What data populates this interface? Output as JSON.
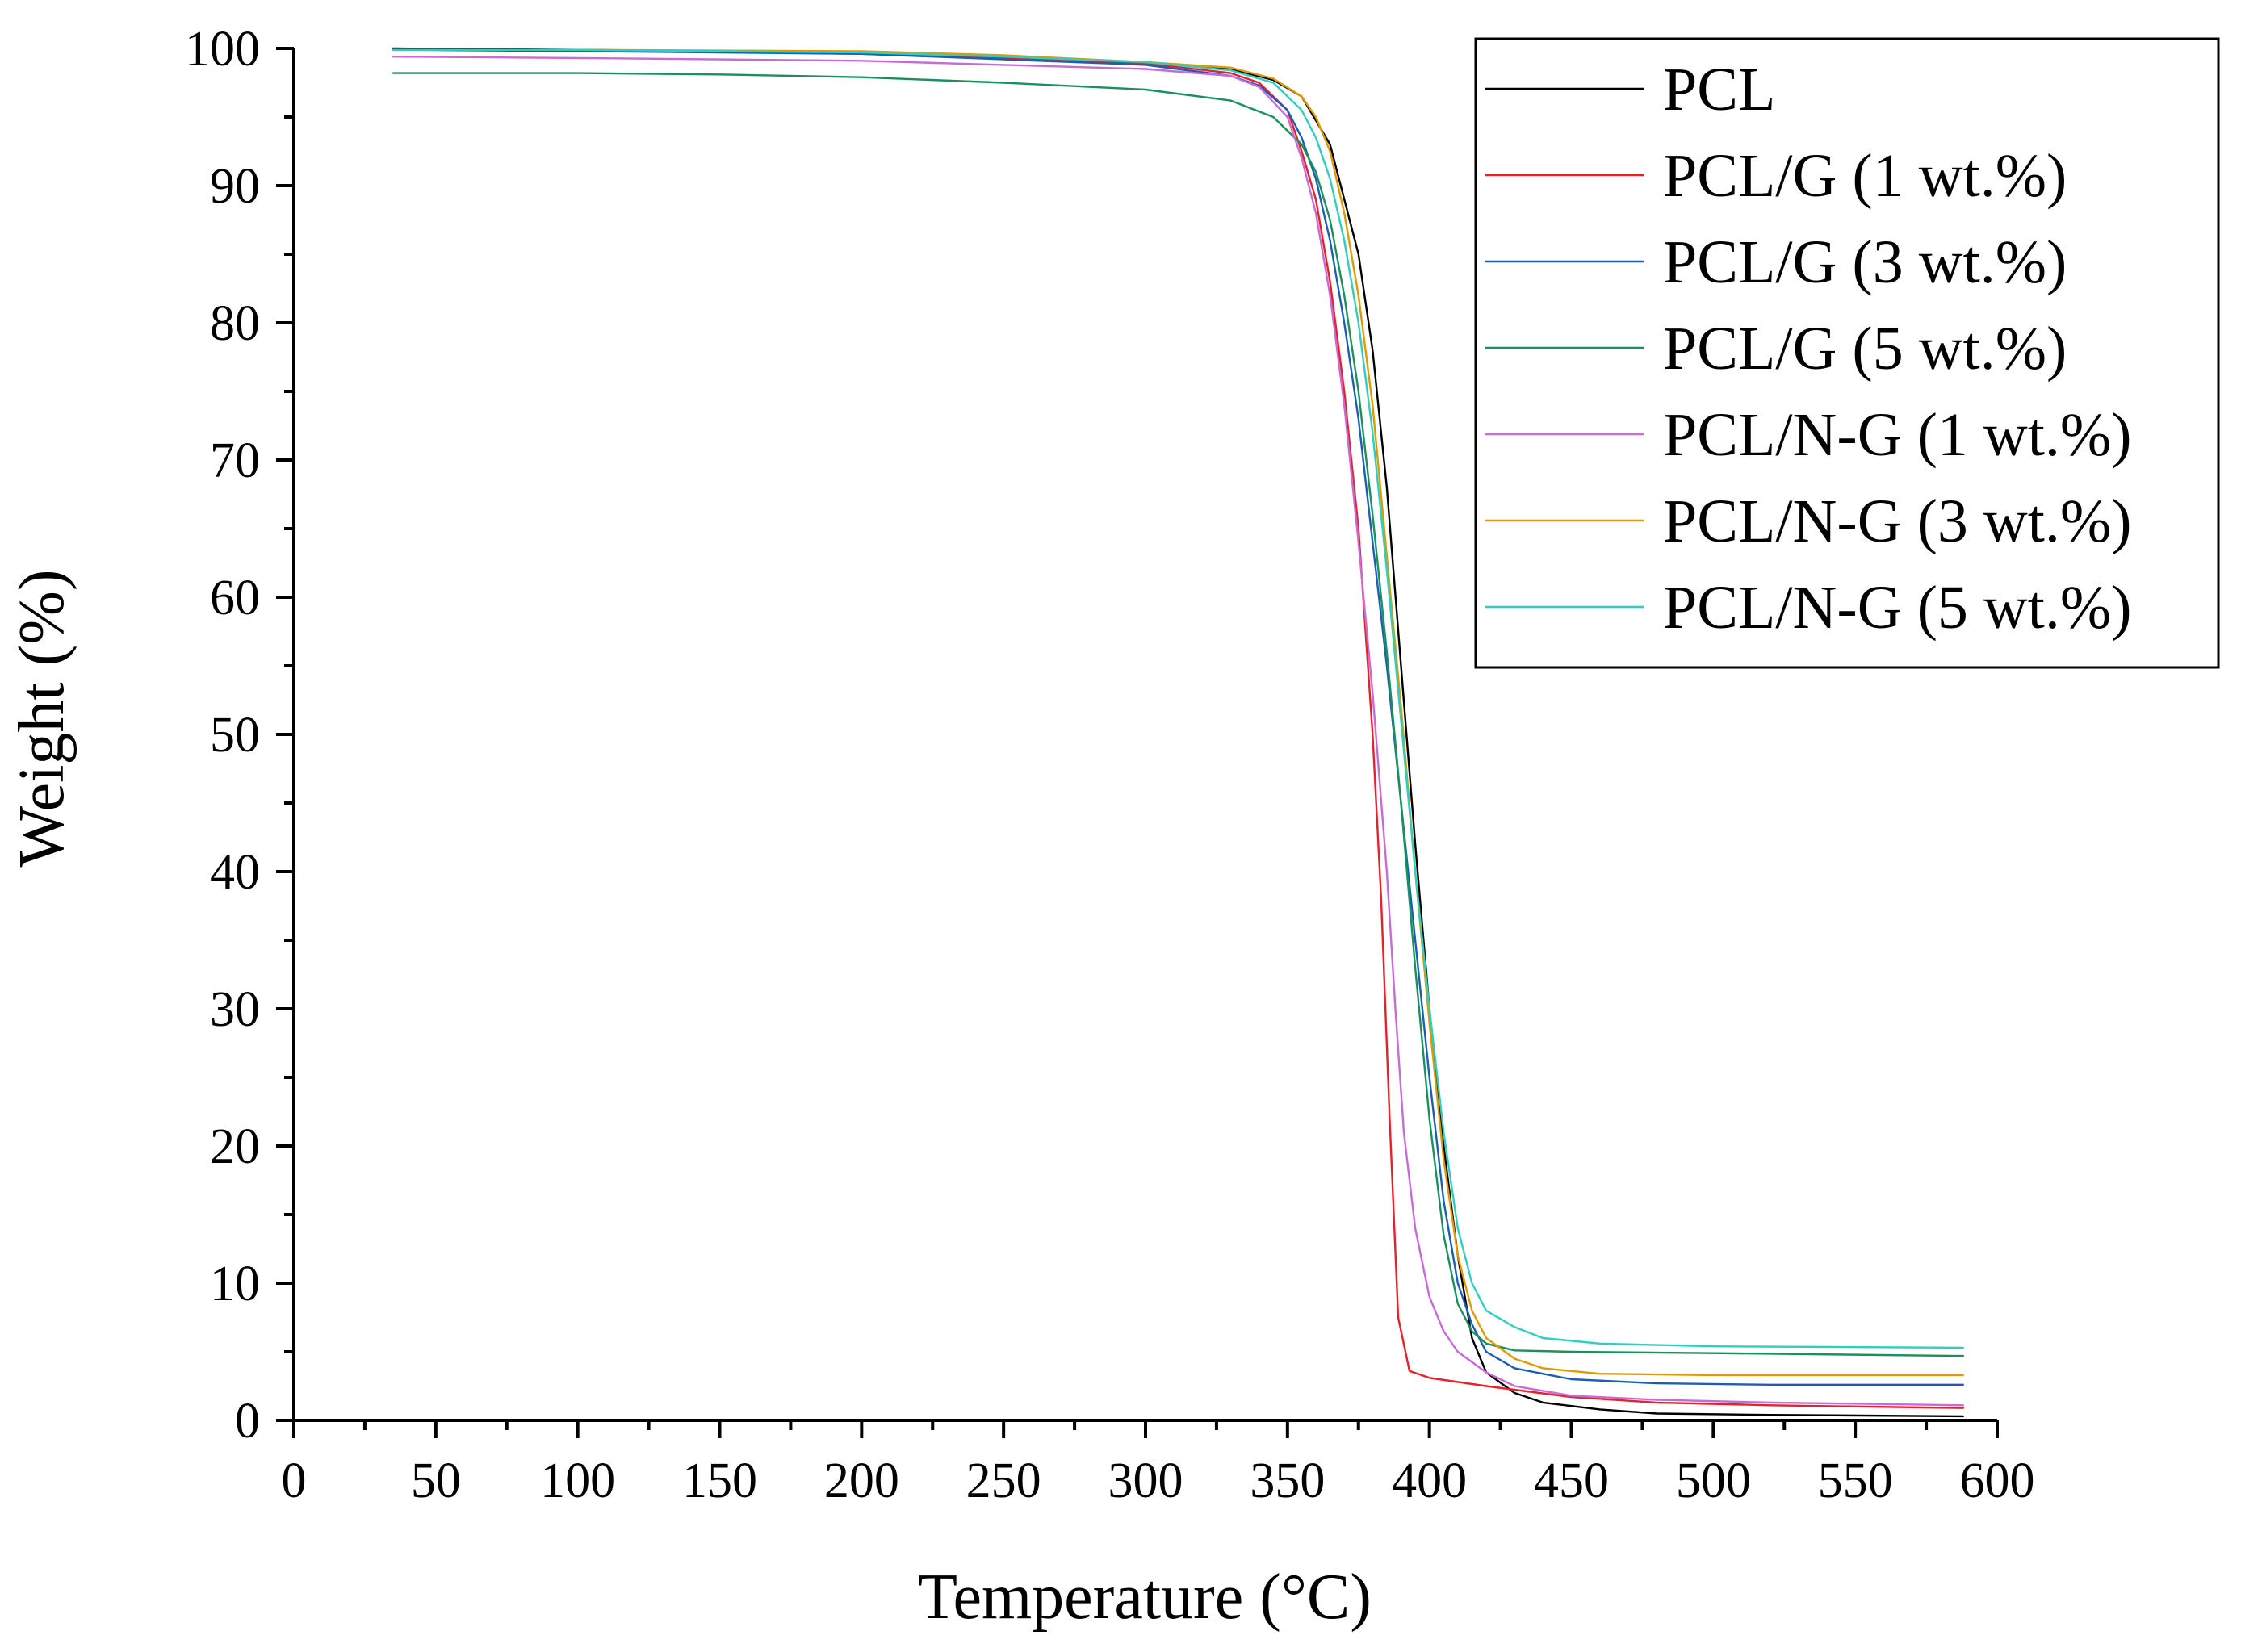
{
  "chart_data": {
    "type": "line",
    "title": "",
    "xlabel": "Temperature (°C)",
    "ylabel": "Weight (%)",
    "xlim": [
      0,
      600
    ],
    "ylim": [
      0,
      100
    ],
    "x_ticks": [
      0,
      50,
      100,
      150,
      200,
      250,
      300,
      350,
      400,
      450,
      500,
      550,
      600
    ],
    "y_ticks": [
      0,
      10,
      20,
      30,
      40,
      50,
      60,
      70,
      80,
      90,
      100
    ],
    "grid": false,
    "legend_position": "top-right",
    "series": [
      {
        "name": "PCL",
        "color": "#000000",
        "points": [
          [
            35,
            100
          ],
          [
            100,
            99.9
          ],
          [
            200,
            99.7
          ],
          [
            250,
            99.4
          ],
          [
            300,
            99
          ],
          [
            330,
            98.5
          ],
          [
            345,
            97.7
          ],
          [
            355,
            96.5
          ],
          [
            365,
            93
          ],
          [
            370,
            89
          ],
          [
            375,
            85
          ],
          [
            380,
            78
          ],
          [
            385,
            68
          ],
          [
            390,
            55
          ],
          [
            395,
            42
          ],
          [
            400,
            30
          ],
          [
            405,
            20
          ],
          [
            410,
            12
          ],
          [
            415,
            6
          ],
          [
            420,
            3.5
          ],
          [
            430,
            2
          ],
          [
            440,
            1.3
          ],
          [
            460,
            0.8
          ],
          [
            480,
            0.5
          ],
          [
            520,
            0.4
          ],
          [
            588,
            0.3
          ]
        ]
      },
      {
        "name": "PCL/G (1 wt.%)",
        "color": "#e8202a",
        "points": [
          [
            35,
            99.9
          ],
          [
            100,
            99.9
          ],
          [
            200,
            99.6
          ],
          [
            250,
            99.3
          ],
          [
            300,
            98.9
          ],
          [
            330,
            98.2
          ],
          [
            340,
            97.5
          ],
          [
            350,
            95.5
          ],
          [
            355,
            92.5
          ],
          [
            360,
            89
          ],
          [
            365,
            83
          ],
          [
            370,
            75
          ],
          [
            375,
            65
          ],
          [
            380,
            50
          ],
          [
            383,
            38
          ],
          [
            386,
            22
          ],
          [
            389,
            7.5
          ],
          [
            393,
            3.6
          ],
          [
            400,
            3.1
          ],
          [
            420,
            2.5
          ],
          [
            450,
            1.7
          ],
          [
            480,
            1.3
          ],
          [
            520,
            1.1
          ],
          [
            588,
            0.9
          ]
        ]
      },
      {
        "name": "PCL/G (3 wt.%)",
        "color": "#1a5fb4",
        "points": [
          [
            35,
            99.9
          ],
          [
            100,
            99.8
          ],
          [
            200,
            99.6
          ],
          [
            250,
            99.2
          ],
          [
            300,
            98.8
          ],
          [
            330,
            98
          ],
          [
            340,
            97.3
          ],
          [
            350,
            95.5
          ],
          [
            355,
            93.5
          ],
          [
            360,
            90.5
          ],
          [
            365,
            86
          ],
          [
            370,
            80
          ],
          [
            375,
            73
          ],
          [
            380,
            64
          ],
          [
            385,
            55
          ],
          [
            390,
            45
          ],
          [
            395,
            35
          ],
          [
            400,
            25
          ],
          [
            405,
            16
          ],
          [
            410,
            10
          ],
          [
            415,
            7
          ],
          [
            420,
            5
          ],
          [
            430,
            3.8
          ],
          [
            450,
            3
          ],
          [
            480,
            2.7
          ],
          [
            520,
            2.6
          ],
          [
            588,
            2.6
          ]
        ]
      },
      {
        "name": "PCL/G (5 wt.%)",
        "color": "#17925a",
        "points": [
          [
            35,
            98.2
          ],
          [
            100,
            98.2
          ],
          [
            150,
            98.1
          ],
          [
            200,
            97.9
          ],
          [
            250,
            97.5
          ],
          [
            300,
            97
          ],
          [
            330,
            96.2
          ],
          [
            345,
            95
          ],
          [
            355,
            93
          ],
          [
            360,
            91
          ],
          [
            365,
            87.5
          ],
          [
            370,
            82
          ],
          [
            375,
            75
          ],
          [
            380,
            66
          ],
          [
            385,
            56
          ],
          [
            390,
            45
          ],
          [
            395,
            33
          ],
          [
            400,
            22
          ],
          [
            405,
            13.5
          ],
          [
            410,
            8.5
          ],
          [
            415,
            6.5
          ],
          [
            420,
            5.6
          ],
          [
            430,
            5.1
          ],
          [
            450,
            5
          ],
          [
            500,
            4.9
          ],
          [
            588,
            4.7
          ]
        ]
      },
      {
        "name": "PCL/N-G (1 wt.%)",
        "color": "#c76bd6",
        "points": [
          [
            35,
            99.4
          ],
          [
            100,
            99.3
          ],
          [
            200,
            99.1
          ],
          [
            250,
            98.8
          ],
          [
            300,
            98.5
          ],
          [
            330,
            98
          ],
          [
            340,
            97.2
          ],
          [
            350,
            95
          ],
          [
            355,
            92
          ],
          [
            360,
            88
          ],
          [
            365,
            82
          ],
          [
            370,
            74
          ],
          [
            375,
            64
          ],
          [
            380,
            53
          ],
          [
            385,
            40
          ],
          [
            388,
            30
          ],
          [
            391,
            21
          ],
          [
            395,
            14
          ],
          [
            400,
            9
          ],
          [
            405,
            6.5
          ],
          [
            410,
            5
          ],
          [
            420,
            3.5
          ],
          [
            430,
            2.5
          ],
          [
            450,
            1.8
          ],
          [
            480,
            1.5
          ],
          [
            520,
            1.3
          ],
          [
            588,
            1.1
          ]
        ]
      },
      {
        "name": "PCL/N-G (3 wt.%)",
        "color": "#e09a00",
        "points": [
          [
            35,
            99.9
          ],
          [
            100,
            99.9
          ],
          [
            200,
            99.8
          ],
          [
            250,
            99.5
          ],
          [
            300,
            99
          ],
          [
            330,
            98.6
          ],
          [
            345,
            97.8
          ],
          [
            355,
            96.5
          ],
          [
            360,
            95
          ],
          [
            365,
            92.5
          ],
          [
            370,
            88
          ],
          [
            375,
            82
          ],
          [
            380,
            74
          ],
          [
            385,
            63
          ],
          [
            390,
            52
          ],
          [
            395,
            40
          ],
          [
            400,
            29
          ],
          [
            405,
            19
          ],
          [
            410,
            12
          ],
          [
            415,
            8
          ],
          [
            420,
            6
          ],
          [
            430,
            4.5
          ],
          [
            440,
            3.8
          ],
          [
            460,
            3.4
          ],
          [
            500,
            3.3
          ],
          [
            588,
            3.3
          ]
        ]
      },
      {
        "name": "PCL/N-G (5 wt.%)",
        "color": "#2ccfc0",
        "points": [
          [
            35,
            99.9
          ],
          [
            100,
            99.9
          ],
          [
            200,
            99.7
          ],
          [
            250,
            99.4
          ],
          [
            300,
            99
          ],
          [
            330,
            98.4
          ],
          [
            345,
            97.5
          ],
          [
            355,
            95.5
          ],
          [
            360,
            93.5
          ],
          [
            365,
            90.5
          ],
          [
            370,
            86
          ],
          [
            375,
            80
          ],
          [
            380,
            72
          ],
          [
            385,
            62
          ],
          [
            390,
            51
          ],
          [
            395,
            40
          ],
          [
            400,
            30
          ],
          [
            405,
            21
          ],
          [
            410,
            14
          ],
          [
            415,
            10
          ],
          [
            420,
            8
          ],
          [
            430,
            6.8
          ],
          [
            440,
            6
          ],
          [
            460,
            5.6
          ],
          [
            500,
            5.4
          ],
          [
            588,
            5.3
          ]
        ]
      }
    ]
  }
}
